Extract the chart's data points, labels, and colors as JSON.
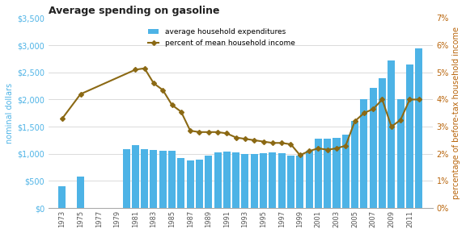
{
  "title": "Average spending on gasoline",
  "ylabel_left": "nominal dollars",
  "ylabel_right": "percentage of before-tax household income",
  "bar_color": "#4db3e6",
  "line_color": "#8B6914",
  "background_color": "#ffffff",
  "bar_years": [
    1973,
    1975,
    1980,
    1981,
    1982,
    1983,
    1984,
    1985,
    1986,
    1987,
    1988,
    1989,
    1990,
    1991,
    1992,
    1993,
    1994,
    1995,
    1996,
    1997,
    1998,
    1999,
    2000,
    2001,
    2002,
    2003,
    2004,
    2005,
    2006,
    2007,
    2008,
    2009,
    2010,
    2011,
    2012
  ],
  "bar_vals": [
    400,
    580,
    1090,
    1160,
    1080,
    1070,
    1060,
    1050,
    920,
    870,
    890,
    970,
    1020,
    1040,
    1020,
    1000,
    990,
    1010,
    1020,
    1010,
    970,
    960,
    1060,
    1280,
    1280,
    1300,
    1350,
    1600,
    2010,
    2220,
    2390,
    2720,
    2010,
    2640,
    2940
  ],
  "line_years": [
    1973,
    1975,
    1981,
    1982,
    1983,
    1984,
    1985,
    1986,
    1987,
    1988,
    1989,
    1990,
    1991,
    1992,
    1993,
    1994,
    1995,
    1996,
    1997,
    1998,
    1999,
    2000,
    2001,
    2002,
    2003,
    2004,
    2005,
    2006,
    2007,
    2008,
    2009,
    2010,
    2011,
    2012
  ],
  "line_vals": [
    3.3,
    4.2,
    5.1,
    5.15,
    4.6,
    4.35,
    3.8,
    3.55,
    2.85,
    2.8,
    2.8,
    2.8,
    2.75,
    2.6,
    2.55,
    2.5,
    2.45,
    2.4,
    2.4,
    2.35,
    1.95,
    2.1,
    2.2,
    2.15,
    2.2,
    2.3,
    3.2,
    3.5,
    3.65,
    4.0,
    3.0,
    3.25,
    4.0,
    4.0
  ],
  "ylim_left": [
    0,
    3500
  ],
  "ylim_right": [
    0,
    7
  ],
  "xlim": [
    1971.5,
    2013.5
  ],
  "legend_labels": [
    "average household expenditures",
    "percent of mean household income"
  ]
}
